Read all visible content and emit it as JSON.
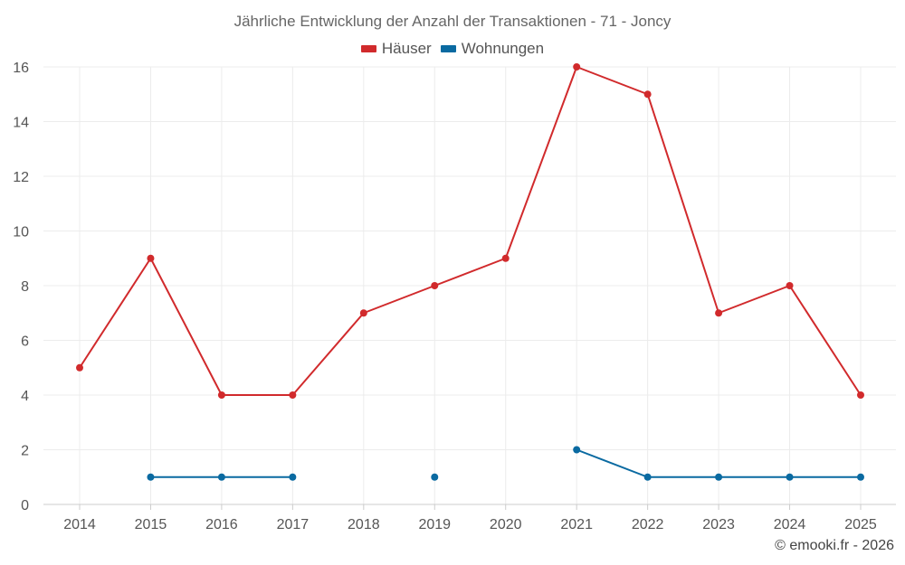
{
  "chart_data": {
    "type": "line",
    "title": "Jährliche Entwicklung der Anzahl der Transaktionen - 71 - Joncy",
    "x": [
      "2014",
      "2015",
      "2016",
      "2017",
      "2018",
      "2019",
      "2020",
      "2021",
      "2022",
      "2023",
      "2024",
      "2025"
    ],
    "ylim": [
      0,
      16
    ],
    "yticks": [
      0,
      2,
      4,
      6,
      8,
      10,
      12,
      14,
      16
    ],
    "grid": true,
    "legend_position": "top-center",
    "series": [
      {
        "name": "Häuser",
        "color": "#d12a2c",
        "values": [
          5,
          9,
          4,
          4,
          7,
          8,
          9,
          16,
          15,
          7,
          8,
          4
        ]
      },
      {
        "name": "Wohnungen",
        "color": "#0a6aa1",
        "values": [
          null,
          1,
          1,
          1,
          null,
          1,
          null,
          2,
          1,
          1,
          1,
          1
        ]
      }
    ]
  },
  "footer": {
    "copyright": "© emooki.fr - 2026"
  }
}
